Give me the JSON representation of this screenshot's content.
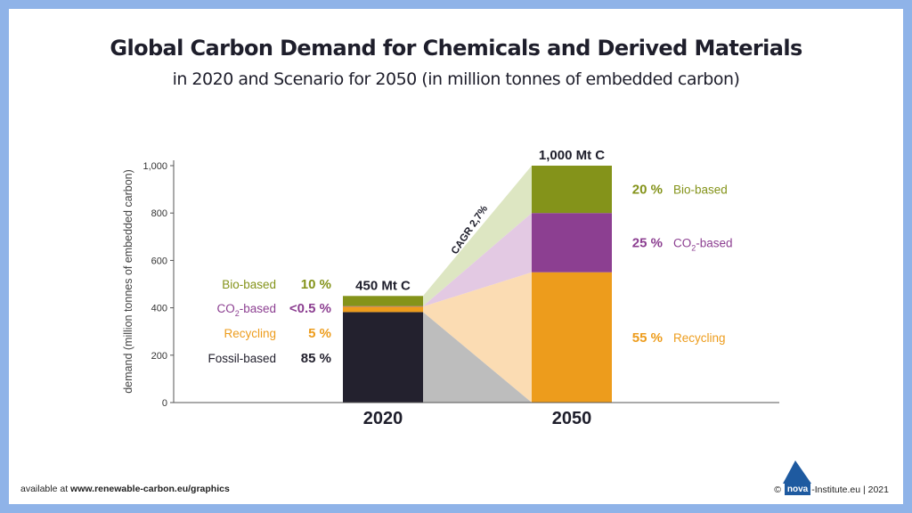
{
  "title": "Global Carbon Demand for Chemicals and Derived Materials",
  "subtitle": "in 2020 and Scenario for 2050 (in million tonnes of embedded carbon)",
  "footer": {
    "left_prefix": "available at ",
    "left_url": "www.renewable-carbon.eu/graphics",
    "copyright": "©",
    "logo": "nova",
    "right_text": "-Institute.eu | 2021"
  },
  "colors": {
    "bio": "#84931a",
    "co2": "#8c3f91",
    "recycling": "#ed9c1c",
    "fossil": "#23212e",
    "bio_light": "#dde6c2",
    "co2_light": "#e3c9e3",
    "recycling_light": "#fbdcb3",
    "fossil_light": "#bdbdbd",
    "text_dark": "#1e1e2b"
  },
  "chart_data": {
    "type": "bar",
    "ylabel": "demand  (million tonnes of embedded carbon)",
    "ylim": [
      0,
      1000
    ],
    "yticks": [
      "0",
      "200",
      "400",
      "600",
      "800",
      "1,000"
    ],
    "categories": [
      "2020",
      "2050"
    ],
    "totals": [
      "450 Mt C",
      "1,000 Mt C"
    ],
    "growth_label": "CAGR 2,7%",
    "series_2020": [
      {
        "name": "Fossil-based",
        "value": 382,
        "percent": "85 %",
        "color": "fossil"
      },
      {
        "name": "Recycling",
        "value": 23,
        "percent": "5 %",
        "color": "recycling"
      },
      {
        "name": "CO2-based",
        "value": 2,
        "percent": "<0.5 %",
        "color": "co2"
      },
      {
        "name": "Bio-based",
        "value": 43,
        "percent": "10 %",
        "color": "bio"
      }
    ],
    "series_2050": [
      {
        "name": "Recycling",
        "value": 550,
        "percent": "55 %",
        "color": "recycling"
      },
      {
        "name": "CO2-based",
        "value": 250,
        "percent": "25 %",
        "color": "co2"
      },
      {
        "name": "Bio-based",
        "value": 200,
        "percent": "20 %",
        "color": "bio"
      }
    ]
  }
}
